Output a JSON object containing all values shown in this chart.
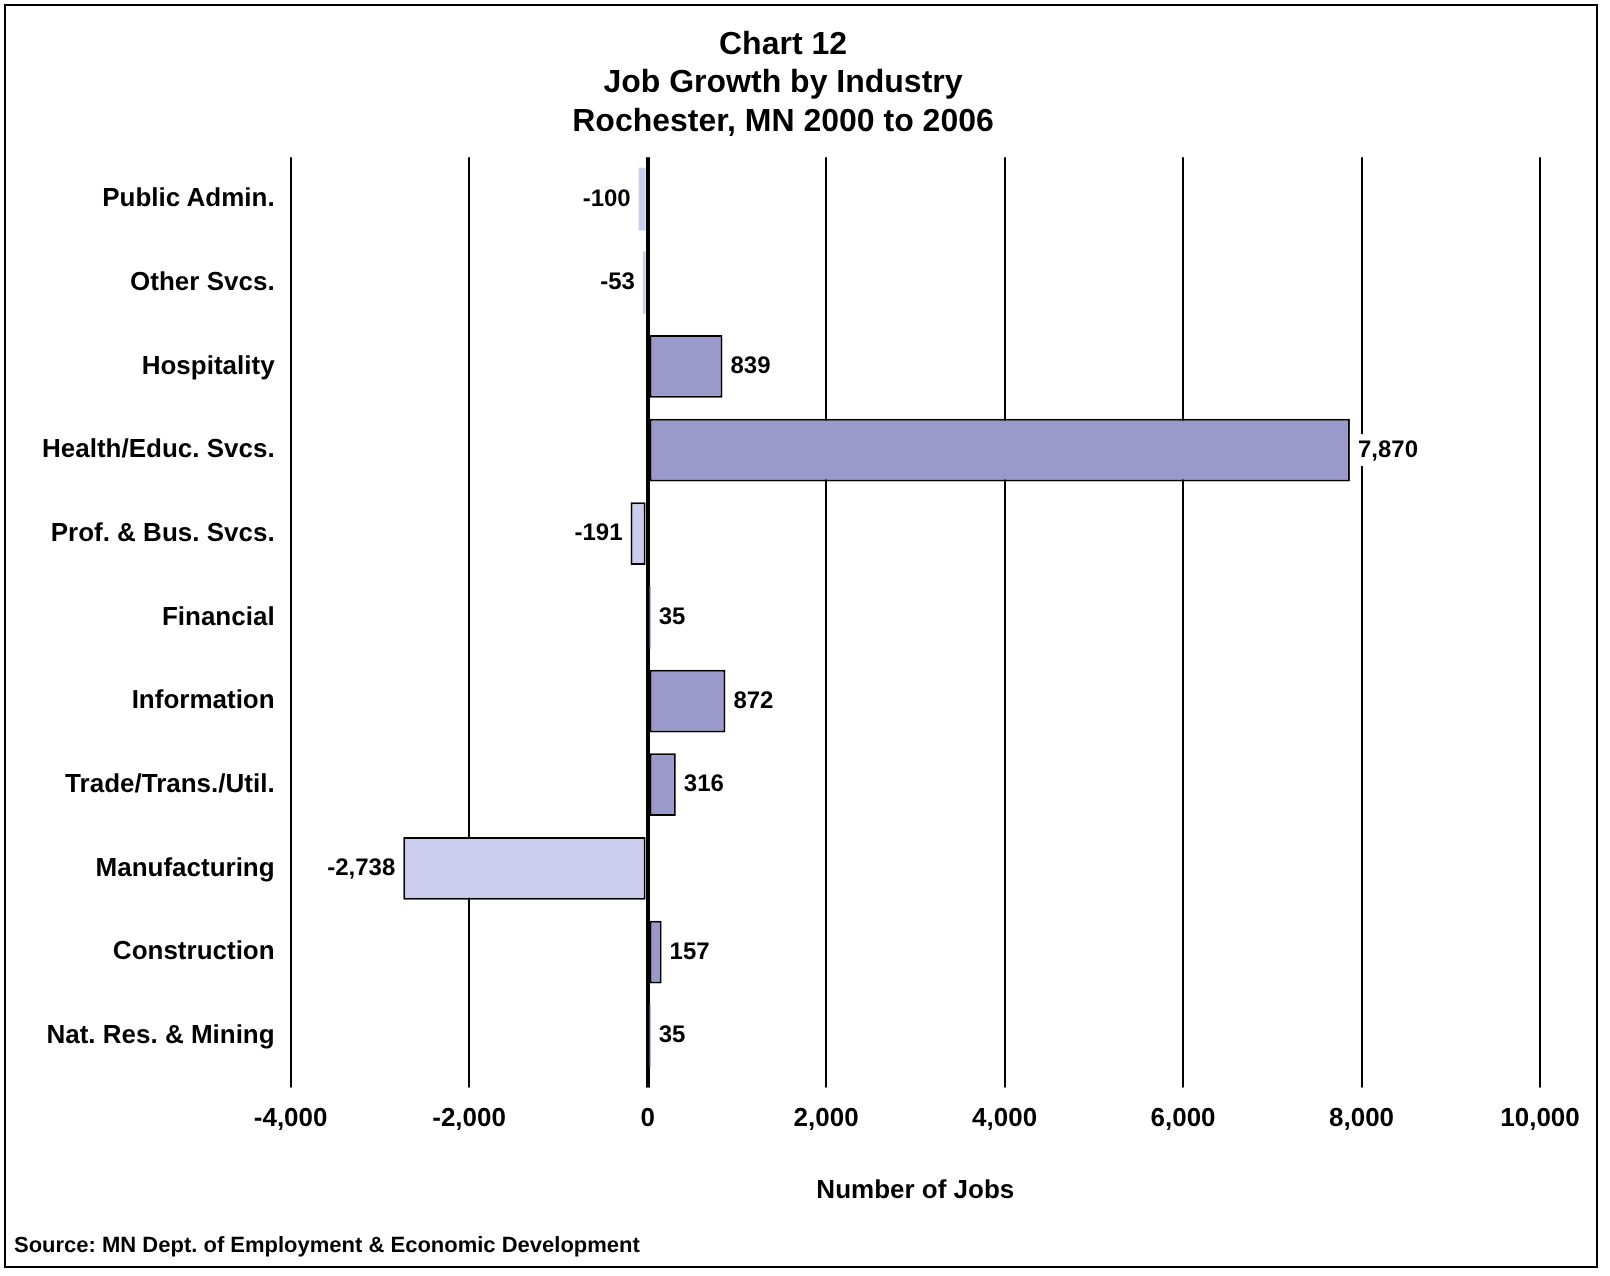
{
  "chart_data": {
    "type": "bar",
    "orientation": "horizontal",
    "title": "Chart 12\nJob Growth by Industry\nRochester, MN 2000 to 2006",
    "xlabel": "Number of Jobs",
    "categories": [
      "Public Admin.",
      "Other Svcs.",
      "Hospitality",
      "Health/Educ. Svcs.",
      "Prof. & Bus. Svcs.",
      "Financial",
      "Information",
      "Trade/Trans./Util.",
      "Manufacturing",
      "Construction",
      "Nat. Res. & Mining"
    ],
    "values": [
      -100,
      -53,
      839,
      7870,
      -191,
      35,
      872,
      316,
      -2738,
      157,
      35
    ],
    "value_labels": [
      "-100",
      "-53",
      "839",
      "7,870",
      "-191",
      "35",
      "872",
      "316",
      "-2,738",
      "157",
      "35"
    ],
    "colors": [
      "#ccccee",
      "#ccccee",
      "#9999cc",
      "#9999cc",
      "#ccccee",
      "#9999cc",
      "#9999cc",
      "#9999cc",
      "#ccccee",
      "#9999cc",
      "#9999cc"
    ],
    "xlim": [
      -4000,
      10000
    ],
    "xticks": [
      {
        "value": -4000,
        "label": "-4,000"
      },
      {
        "value": -2000,
        "label": "-2,000"
      },
      0,
      {
        "value": 2000,
        "label": "2,000"
      },
      {
        "value": 4000,
        "label": "4,000"
      },
      {
        "value": 6000,
        "label": "6,000"
      },
      {
        "value": 8000,
        "label": "8,000"
      },
      {
        "value": 10000,
        "label": "10,000"
      }
    ],
    "grid": "x",
    "legend": false,
    "annotations": [
      "Source: MN Dept. of Employment & Economic Development"
    ]
  }
}
